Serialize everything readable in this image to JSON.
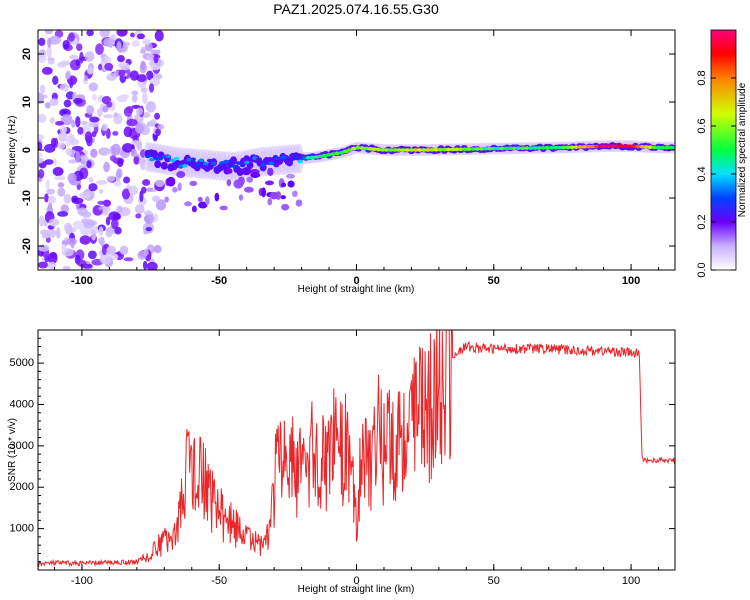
{
  "chart_data": [
    {
      "type": "heatmap",
      "title": "PAZ1.2025.074.16.55.G30",
      "xlabel": "Height of straight line (km)",
      "ylabel": "Frequency (Hz)",
      "xlim": [
        -116,
        116
      ],
      "ylim": [
        -25,
        25
      ],
      "xticks": [
        -100,
        -50,
        0,
        50,
        100
      ],
      "yticks": [
        -20,
        -10,
        0,
        10,
        20
      ],
      "colorbar": {
        "label": "Normalized spectral amplitude",
        "range": [
          0,
          1
        ],
        "ticks": [
          "0.0",
          "0.2",
          "0.4",
          "0.6",
          "0.8"
        ],
        "colors": [
          "#ffffff",
          "#c8b0ff",
          "#6a00ff",
          "#0040ff",
          "#00e0ff",
          "#00ff40",
          "#d0ff00",
          "#ff8000",
          "#ff0000",
          "#ff0080"
        ]
      },
      "features": {
        "noise_region_x": [
          -116,
          -75
        ],
        "signal_track": [
          {
            "x": -75,
            "f": -1.5,
            "a": 0.35
          },
          {
            "x": -65,
            "f": -2.5,
            "a": 0.35
          },
          {
            "x": -55,
            "f": -3.0,
            "a": 0.3
          },
          {
            "x": -45,
            "f": -3.5,
            "a": 0.3
          },
          {
            "x": -35,
            "f": -2.5,
            "a": 0.3
          },
          {
            "x": -25,
            "f": -2.0,
            "a": 0.25
          },
          {
            "x": -15,
            "f": -1.5,
            "a": 0.45
          },
          {
            "x": -5,
            "f": -0.5,
            "a": 0.55
          },
          {
            "x": 0,
            "f": 0.5,
            "a": 0.6
          },
          {
            "x": 10,
            "f": 0.0,
            "a": 0.6
          },
          {
            "x": 25,
            "f": 0.0,
            "a": 0.65
          },
          {
            "x": 50,
            "f": 0.3,
            "a": 0.5
          },
          {
            "x": 75,
            "f": 0.5,
            "a": 0.5
          },
          {
            "x": 90,
            "f": 0.8,
            "a": 0.95
          },
          {
            "x": 100,
            "f": 0.8,
            "a": 0.9
          },
          {
            "x": 110,
            "f": 0.5,
            "a": 0.45
          }
        ]
      }
    },
    {
      "type": "line",
      "xlabel": "Height of straight line (km)",
      "ylabel": "SNR (10 * v/v)",
      "xlim": [
        -116,
        116
      ],
      "ylim": [
        0,
        5800
      ],
      "xticks": [
        -100,
        -50,
        0,
        50,
        100
      ],
      "yticks": [
        1000,
        2000,
        3000,
        4000,
        5000
      ],
      "color": "#e8272b",
      "x": [
        -116,
        -110,
        -100,
        -90,
        -80,
        -75,
        -70,
        -65,
        -62,
        -60,
        -58,
        -56,
        -54,
        -52,
        -50,
        -45,
        -40,
        -35,
        -32,
        -30,
        -28,
        -26,
        -24,
        -22,
        -20,
        -18,
        -16,
        -14,
        -12,
        -10,
        -8,
        -6,
        -4,
        -2,
        0,
        2,
        4,
        6,
        8,
        10,
        12,
        14,
        16,
        18,
        20,
        25,
        30,
        35,
        40,
        45,
        50,
        60,
        70,
        80,
        90,
        100,
        103,
        104,
        105,
        110,
        116
      ],
      "y": [
        150,
        170,
        160,
        180,
        200,
        400,
        800,
        1200,
        2500,
        3000,
        2200,
        2600,
        2000,
        1800,
        1600,
        1200,
        900,
        600,
        1000,
        2200,
        3200,
        2600,
        3000,
        2400,
        2700,
        2800,
        3100,
        3000,
        2900,
        3200,
        3400,
        3000,
        3300,
        2900,
        1500,
        2900,
        3300,
        3100,
        3500,
        3300,
        3700,
        3500,
        3900,
        3700,
        3900,
        4400,
        4900,
        5200,
        5400,
        5350,
        5350,
        5350,
        5350,
        5300,
        5300,
        5250,
        5200,
        2700,
        2650,
        2650,
        2650
      ]
    }
  ]
}
